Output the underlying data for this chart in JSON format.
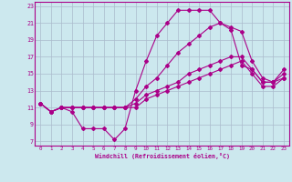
{
  "xlabel": "Windchill (Refroidissement éolien,°C)",
  "xlim": [
    -0.5,
    23.5
  ],
  "ylim": [
    6.5,
    23.5
  ],
  "xticks": [
    0,
    1,
    2,
    3,
    4,
    5,
    6,
    7,
    8,
    9,
    10,
    11,
    12,
    13,
    14,
    15,
    16,
    17,
    18,
    19,
    20,
    21,
    22,
    23
  ],
  "yticks": [
    7,
    9,
    11,
    13,
    15,
    17,
    19,
    21,
    23
  ],
  "bg_color": "#cce8ee",
  "line_color": "#aa0088",
  "grid_color": "#aabbcc",
  "line1_x": [
    0,
    1,
    2,
    3,
    4,
    5,
    6,
    7,
    8,
    9,
    10,
    11,
    12,
    13,
    14,
    15,
    16,
    17,
    18,
    19,
    20,
    21,
    22,
    23
  ],
  "line1_y": [
    11.5,
    10.5,
    11.0,
    10.5,
    8.5,
    8.5,
    8.5,
    7.2,
    8.5,
    13.0,
    16.5,
    19.5,
    21.0,
    22.5,
    22.5,
    22.5,
    22.5,
    21.0,
    20.2,
    16.0,
    15.5,
    14.0,
    14.0,
    14.5
  ],
  "line2_x": [
    0,
    1,
    2,
    3,
    4,
    5,
    6,
    7,
    8,
    9,
    10,
    11,
    12,
    13,
    14,
    15,
    16,
    17,
    18,
    19,
    20,
    21,
    22,
    23
  ],
  "line2_y": [
    11.5,
    10.5,
    11.0,
    11.0,
    11.0,
    11.0,
    11.0,
    11.0,
    11.0,
    12.0,
    13.5,
    14.5,
    16.0,
    17.5,
    18.5,
    19.5,
    20.5,
    21.0,
    20.5,
    20.0,
    16.5,
    14.5,
    14.0,
    15.5
  ],
  "line3_x": [
    0,
    1,
    2,
    3,
    4,
    5,
    6,
    7,
    8,
    9,
    10,
    11,
    12,
    13,
    14,
    15,
    16,
    17,
    18,
    19,
    20,
    21,
    22,
    23
  ],
  "line3_y": [
    11.5,
    10.5,
    11.0,
    11.0,
    11.0,
    11.0,
    11.0,
    11.0,
    11.0,
    11.5,
    12.5,
    13.0,
    13.5,
    14.0,
    15.0,
    15.5,
    16.0,
    16.5,
    17.0,
    17.0,
    15.5,
    14.0,
    14.0,
    15.0
  ],
  "line4_x": [
    0,
    1,
    2,
    3,
    4,
    5,
    6,
    7,
    8,
    9,
    10,
    11,
    12,
    13,
    14,
    15,
    16,
    17,
    18,
    19,
    20,
    21,
    22,
    23
  ],
  "line4_y": [
    11.5,
    10.5,
    11.0,
    11.0,
    11.0,
    11.0,
    11.0,
    11.0,
    11.0,
    11.0,
    12.0,
    12.5,
    13.0,
    13.5,
    14.0,
    14.5,
    15.0,
    15.5,
    16.0,
    16.5,
    15.0,
    13.5,
    13.5,
    14.5
  ]
}
